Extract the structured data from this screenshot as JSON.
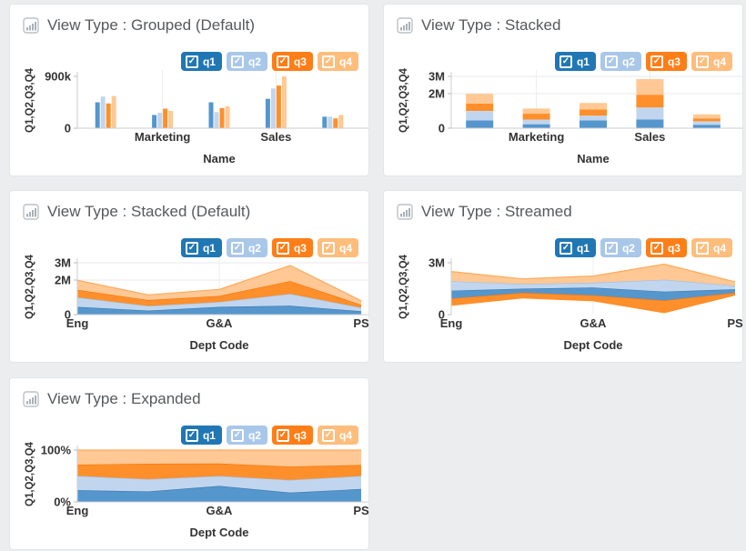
{
  "page": {
    "background": "#ecedef",
    "card_background": "#ffffff"
  },
  "palette": {
    "q1": "#5596cd",
    "q2": "#c1d6ee",
    "q3": "#ff8f2b",
    "q4": "#ffc894"
  },
  "palette_edges": {
    "q1": "#3a79ae",
    "q2": "#9fc0e2",
    "q3": "#f1750f",
    "q4": "#ffaa5c"
  },
  "legend": {
    "items": [
      {
        "label": "q1",
        "checked": true,
        "color": "#2077b4"
      },
      {
        "label": "q2",
        "checked": true,
        "color": "#a9c7e9"
      },
      {
        "label": "q3",
        "checked": true,
        "color": "#ff7e17"
      },
      {
        "label": "q4",
        "checked": true,
        "color": "#ffbd7c"
      }
    ]
  },
  "chart_data": [
    {
      "type": "bar",
      "mode": "grouped",
      "title": "View Type : Grouped (Default)",
      "xlabel": "Name",
      "ylabel": "Q1,Q2,Q3,Q4",
      "categories": [
        "Eng",
        "Marketing",
        "G&A",
        "Sales",
        "PS"
      ],
      "visible_x_labels": [
        "Marketing",
        "Sales"
      ],
      "ylim": [
        0,
        900000
      ],
      "yticks": [
        {
          "value": 900000,
          "label": "900k"
        },
        {
          "value": 0,
          "label": "0"
        }
      ],
      "hgrid": [],
      "vgrid": [
        1,
        3
      ],
      "axis_bottom": true,
      "series": [
        {
          "name": "q1",
          "values": [
            450000,
            230000,
            450000,
            510000,
            200000
          ]
        },
        {
          "name": "q2",
          "values": [
            550000,
            270000,
            280000,
            690000,
            200000
          ]
        },
        {
          "name": "q3",
          "values": [
            430000,
            340000,
            350000,
            740000,
            170000
          ]
        },
        {
          "name": "q4",
          "values": [
            560000,
            300000,
            380000,
            900000,
            230000
          ]
        }
      ]
    },
    {
      "type": "bar",
      "mode": "stacked",
      "title": "View Type : Stacked",
      "xlabel": "Name",
      "ylabel": "Q1,Q2,Q3,Q4",
      "categories": [
        "Eng",
        "Marketing",
        "G&A",
        "Sales",
        "PS"
      ],
      "visible_x_labels": [
        "Marketing",
        "Sales"
      ],
      "ylim": [
        0,
        3000000
      ],
      "yticks": [
        {
          "value": 3000000,
          "label": "3M"
        },
        {
          "value": 2000000,
          "label": "2M"
        },
        {
          "value": 0,
          "label": "0"
        }
      ],
      "hgrid": [
        3000000,
        2000000
      ],
      "vgrid": [
        1,
        3
      ],
      "axis_bottom": true,
      "series": [
        {
          "name": "q1",
          "values": [
            450000,
            230000,
            450000,
            510000,
            200000
          ]
        },
        {
          "name": "q2",
          "values": [
            550000,
            270000,
            280000,
            690000,
            200000
          ]
        },
        {
          "name": "q3",
          "values": [
            430000,
            340000,
            350000,
            740000,
            170000
          ]
        },
        {
          "name": "q4",
          "values": [
            560000,
            300000,
            380000,
            900000,
            230000
          ]
        }
      ]
    },
    {
      "type": "area",
      "mode": "stacked",
      "title": "View Type : Stacked (Default)",
      "xlabel": "Dept Code",
      "ylabel": "Q1,Q2,Q3,Q4",
      "categories": [
        "Eng",
        "Marketing",
        "G&A",
        "Sales",
        "PS"
      ],
      "visible_x_labels": [
        "Eng",
        "G&A",
        "PS"
      ],
      "ylim": [
        0,
        3000000
      ],
      "yticks": [
        {
          "value": 3000000,
          "label": "3M"
        },
        {
          "value": 2000000,
          "label": "2M"
        },
        {
          "value": 0,
          "label": "0"
        }
      ],
      "hgrid": [
        3000000,
        2000000
      ],
      "vgrid": [
        2
      ],
      "axis_bottom": true,
      "series": [
        {
          "name": "q1",
          "values": [
            450000,
            230000,
            450000,
            510000,
            200000
          ]
        },
        {
          "name": "q2",
          "values": [
            550000,
            270000,
            280000,
            690000,
            200000
          ]
        },
        {
          "name": "q3",
          "values": [
            430000,
            340000,
            350000,
            740000,
            170000
          ]
        },
        {
          "name": "q4",
          "values": [
            560000,
            300000,
            380000,
            900000,
            230000
          ]
        }
      ]
    },
    {
      "type": "area",
      "mode": "stream",
      "title": "View Type : Streamed",
      "xlabel": "Dept Code",
      "ylabel": "Q1,Q2,Q3,Q4",
      "categories": [
        "Eng",
        "Marketing",
        "G&A",
        "Sales",
        "PS"
      ],
      "visible_x_labels": [
        "Eng",
        "G&A",
        "PS"
      ],
      "ylim": [
        0,
        3000000
      ],
      "yticks": [
        {
          "value": 3000000,
          "label": "3M"
        },
        {
          "value": 0,
          "label": "0"
        }
      ],
      "hgrid": [],
      "vgrid": [
        2
      ],
      "axis_bottom": false,
      "stream_order": [
        "q3",
        "q1",
        "q2",
        "q4"
      ],
      "series": [
        {
          "name": "q1",
          "values": [
            450000,
            230000,
            450000,
            510000,
            200000
          ]
        },
        {
          "name": "q2",
          "values": [
            550000,
            270000,
            280000,
            690000,
            200000
          ]
        },
        {
          "name": "q3",
          "values": [
            430000,
            340000,
            350000,
            740000,
            170000
          ]
        },
        {
          "name": "q4",
          "values": [
            560000,
            300000,
            380000,
            900000,
            230000
          ]
        }
      ]
    },
    {
      "type": "area",
      "mode": "expanded",
      "title": "View Type : Expanded",
      "xlabel": "Dept Code",
      "ylabel": "Q1,Q2,Q3,Q4",
      "categories": [
        "Eng",
        "Marketing",
        "G&A",
        "Sales",
        "PS"
      ],
      "visible_x_labels": [
        "Eng",
        "G&A",
        "PS"
      ],
      "ylim": [
        0,
        1
      ],
      "yticks": [
        {
          "value": 1,
          "label": "100%"
        },
        {
          "value": 0,
          "label": "0%"
        }
      ],
      "hgrid": [],
      "vgrid": [
        2
      ],
      "axis_bottom": true,
      "series": [
        {
          "name": "q1",
          "values": [
            450000,
            230000,
            450000,
            510000,
            200000
          ]
        },
        {
          "name": "q2",
          "values": [
            550000,
            270000,
            280000,
            690000,
            200000
          ]
        },
        {
          "name": "q3",
          "values": [
            430000,
            340000,
            350000,
            740000,
            170000
          ]
        },
        {
          "name": "q4",
          "values": [
            560000,
            300000,
            380000,
            900000,
            230000
          ]
        }
      ]
    }
  ]
}
